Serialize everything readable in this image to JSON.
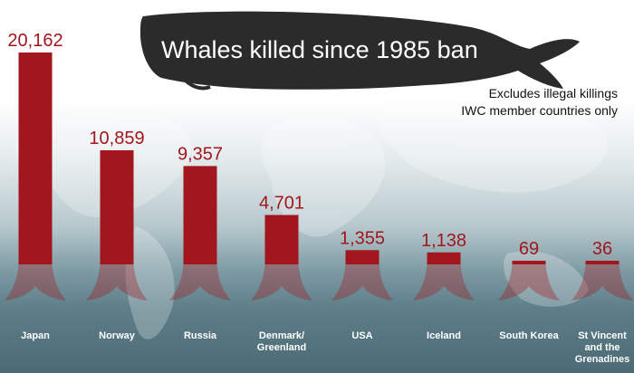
{
  "title": "Whales killed since 1985 ban",
  "notes": [
    "Excludes illegal killings",
    "IWC member countries only"
  ],
  "colors": {
    "bar": "#a2161d",
    "value_text": "#a2161d",
    "category_text": "#ffffff",
    "whale": "#2b2b2b"
  },
  "icons": [
    "whale-silhouette",
    "world-map-background",
    "whale-tail-flukes"
  ],
  "chart_data": {
    "type": "bar",
    "title": "Whales killed since 1985 ban",
    "categories": [
      "Japan",
      "Norway",
      "Russia",
      "Denmark/ Greenland",
      "USA",
      "Iceland",
      "South Korea",
      "St Vincent and the Grenadines"
    ],
    "values": [
      20162,
      10859,
      9357,
      4701,
      1355,
      1138,
      69,
      36
    ],
    "value_labels": [
      "20,162",
      "10,859",
      "9,357",
      "4,701",
      "1,355",
      "1,138",
      "69",
      "36"
    ],
    "ylim": [
      0,
      20162
    ],
    "grid": false,
    "legend": "none"
  }
}
